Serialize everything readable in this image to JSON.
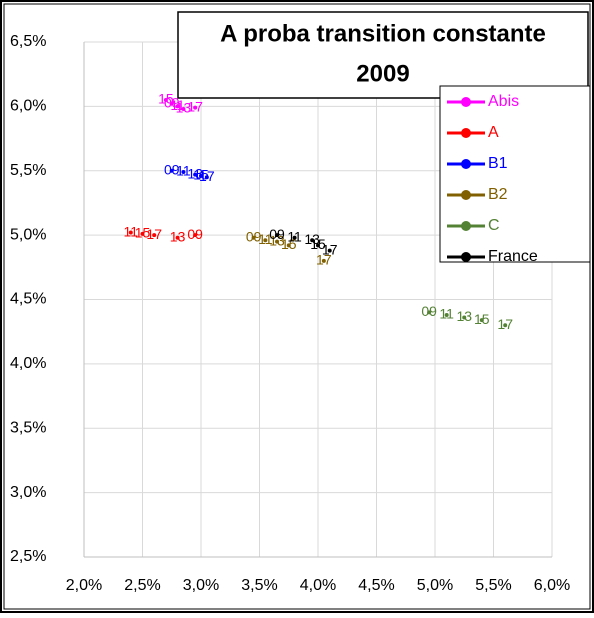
{
  "chart_data": {
    "type": "scatter",
    "title": "A proba transition constante",
    "subtitle": "2009",
    "xlim": [
      2.0,
      6.0
    ],
    "xticks": [
      {
        "value": 2.0,
        "label": "2,0%"
      },
      {
        "value": 2.5,
        "label": "2,5%"
      },
      {
        "value": 3.0,
        "label": "3,0%"
      },
      {
        "value": 3.5,
        "label": "3,5%"
      },
      {
        "value": 4.0,
        "label": "4,0%"
      },
      {
        "value": 4.5,
        "label": "4,5%"
      },
      {
        "value": 5.0,
        "label": "5,0%"
      },
      {
        "value": 5.5,
        "label": "5,5%"
      },
      {
        "value": 6.0,
        "label": "6,0%"
      }
    ],
    "ylim": [
      2.5,
      6.5
    ],
    "yticks": [
      {
        "value": 2.5,
        "label": "2,5%"
      },
      {
        "value": 3.0,
        "label": "3,0%"
      },
      {
        "value": 3.5,
        "label": "3,5%"
      },
      {
        "value": 4.0,
        "label": "4,0%"
      },
      {
        "value": 4.5,
        "label": "4,5%"
      },
      {
        "value": 5.0,
        "label": "5,0%"
      },
      {
        "value": 5.5,
        "label": "5,5%"
      },
      {
        "value": 6.0,
        "label": "6,0%"
      },
      {
        "value": 6.5,
        "label": "6,5%"
      }
    ],
    "grid": true,
    "legend": "right",
    "series": [
      {
        "name": "Abis",
        "color": "#ff00ff",
        "x": [
          2.75,
          2.8,
          2.85,
          2.7,
          2.95
        ],
        "values": [
          6.02,
          6.0,
          5.98,
          6.05,
          5.99
        ],
        "labels": [
          "09",
          "11",
          "13",
          "15",
          "17"
        ]
      },
      {
        "name": "A",
        "color": "#ff0000",
        "x": [
          2.95,
          2.4,
          2.8,
          2.5,
          2.6
        ],
        "values": [
          5.0,
          5.02,
          4.98,
          5.01,
          5.0
        ],
        "labels": [
          "09",
          "11",
          "13",
          "15",
          "17"
        ]
      },
      {
        "name": "B1",
        "color": "#0000ff",
        "x": [
          2.75,
          2.85,
          2.95,
          3.0,
          3.05
        ],
        "values": [
          5.5,
          5.49,
          5.47,
          5.46,
          5.45
        ],
        "labels": [
          "09",
          "11",
          "13",
          "15",
          "17"
        ]
      },
      {
        "name": "B2",
        "color": "#806000",
        "x": [
          3.45,
          3.55,
          3.65,
          3.75,
          4.05
        ],
        "values": [
          4.98,
          4.96,
          4.95,
          4.92,
          4.8
        ],
        "labels": [
          "09",
          "11",
          "13",
          "15",
          "17"
        ]
      },
      {
        "name": "C",
        "color": "#548235",
        "x": [
          4.95,
          5.1,
          5.25,
          5.4,
          5.6
        ],
        "values": [
          4.4,
          4.38,
          4.36,
          4.34,
          4.3
        ],
        "labels": [
          "09",
          "11",
          "13",
          "15",
          "17"
        ]
      },
      {
        "name": "France",
        "color": "#000000",
        "x": [
          3.65,
          3.8,
          3.95,
          4.0,
          4.1
        ],
        "values": [
          5.0,
          4.98,
          4.96,
          4.92,
          4.88
        ],
        "labels": [
          "09",
          "11",
          "13",
          "15",
          "17"
        ]
      }
    ]
  }
}
